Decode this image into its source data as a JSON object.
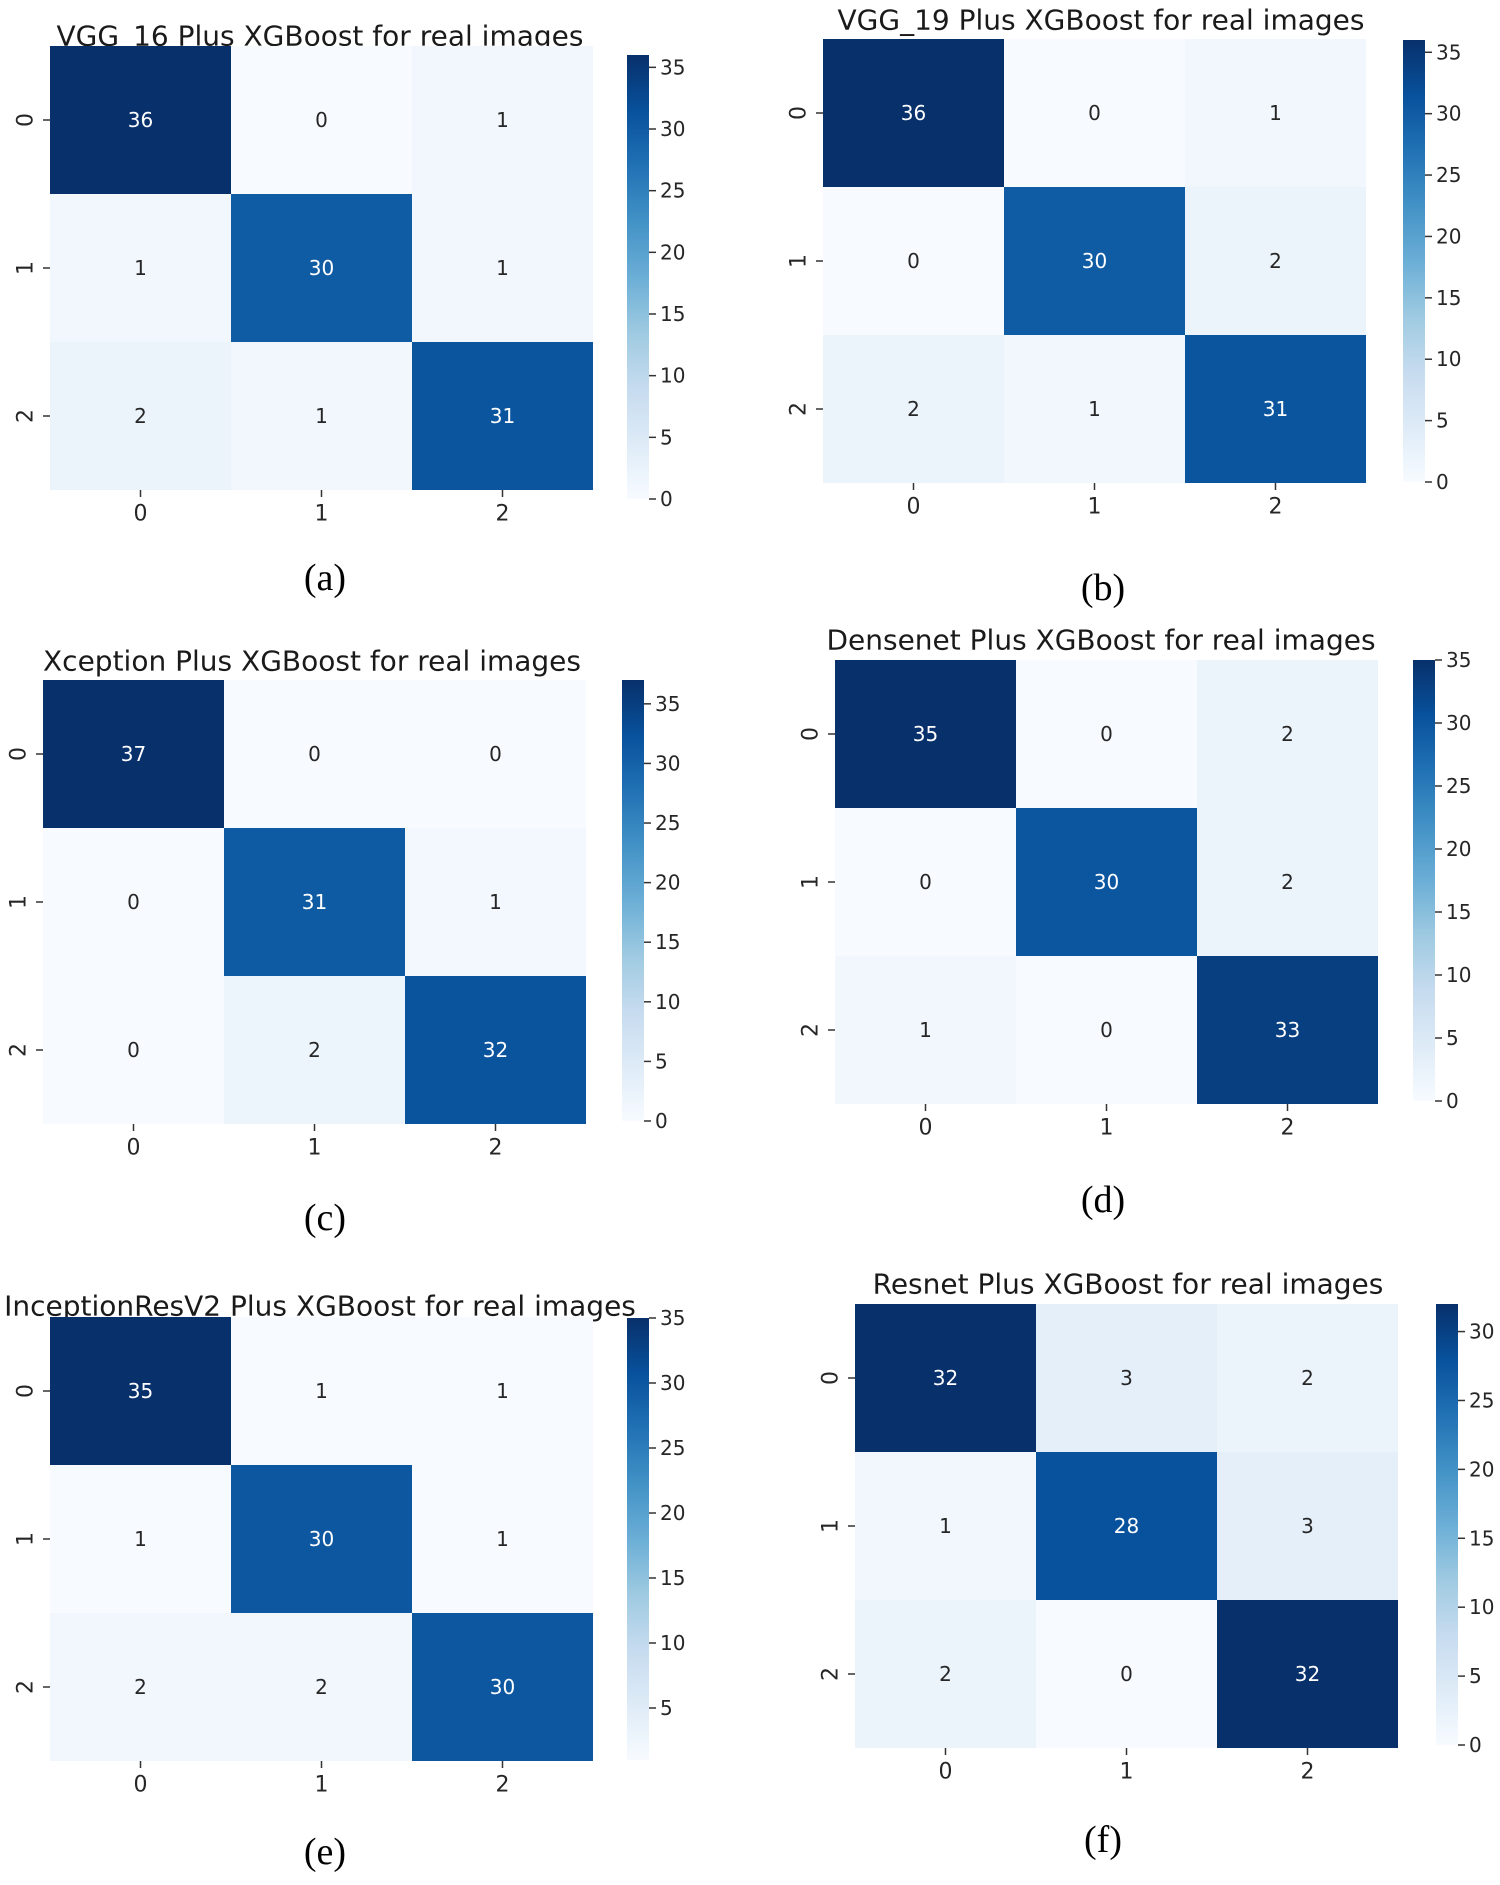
{
  "colorscale": [
    "#f7fbff",
    "#deebf7",
    "#c6dbef",
    "#9ecae1",
    "#6baed6",
    "#4292c6",
    "#2171b5",
    "#08519c",
    "#08306b"
  ],
  "captions": [
    "(a)",
    "(b)",
    "(c)",
    "(d)",
    "(e)",
    "(f)"
  ],
  "chart_data": [
    {
      "type": "heatmap",
      "title": "VGG_16 Plus XGBoost for real images",
      "x_categories": [
        "0",
        "1",
        "2"
      ],
      "y_categories": [
        "0",
        "1",
        "2"
      ],
      "matrix": [
        [
          36,
          0,
          1
        ],
        [
          1,
          30,
          1
        ],
        [
          2,
          1,
          31
        ]
      ],
      "colorbar": {
        "min": 0,
        "max": 36,
        "ticks": [
          0,
          5,
          10,
          15,
          20,
          25,
          30,
          35
        ]
      }
    },
    {
      "type": "heatmap",
      "title": "VGG_19 Plus XGBoost for real images",
      "x_categories": [
        "0",
        "1",
        "2"
      ],
      "y_categories": [
        "0",
        "1",
        "2"
      ],
      "matrix": [
        [
          36,
          0,
          1
        ],
        [
          0,
          30,
          2
        ],
        [
          2,
          1,
          31
        ]
      ],
      "colorbar": {
        "min": 0,
        "max": 36,
        "ticks": [
          0,
          5,
          10,
          15,
          20,
          25,
          30,
          35
        ]
      }
    },
    {
      "type": "heatmap",
      "title": "Xception Plus XGBoost for real images",
      "x_categories": [
        "0",
        "1",
        "2"
      ],
      "y_categories": [
        "0",
        "1",
        "2"
      ],
      "matrix": [
        [
          37,
          0,
          0
        ],
        [
          0,
          31,
          1
        ],
        [
          0,
          2,
          32
        ]
      ],
      "colorbar": {
        "min": 0,
        "max": 37,
        "ticks": [
          0,
          5,
          10,
          15,
          20,
          25,
          30,
          35
        ]
      }
    },
    {
      "type": "heatmap",
      "title": "Densenet Plus XGBoost for real images",
      "x_categories": [
        "0",
        "1",
        "2"
      ],
      "y_categories": [
        "0",
        "1",
        "2"
      ],
      "matrix": [
        [
          35,
          0,
          2
        ],
        [
          0,
          30,
          2
        ],
        [
          1,
          0,
          33
        ]
      ],
      "colorbar": {
        "min": 0,
        "max": 35,
        "ticks": [
          0,
          5,
          10,
          15,
          20,
          25,
          30,
          35
        ]
      }
    },
    {
      "type": "heatmap",
      "title": "InceptionResV2 Plus XGBoost for real images",
      "x_categories": [
        "0",
        "1",
        "2"
      ],
      "y_categories": [
        "0",
        "1",
        "2"
      ],
      "matrix": [
        [
          35,
          1,
          1
        ],
        [
          1,
          30,
          1
        ],
        [
          2,
          2,
          30
        ]
      ],
      "colorbar": {
        "min": 1,
        "max": 35,
        "ticks": [
          5,
          10,
          15,
          20,
          25,
          30,
          35
        ]
      }
    },
    {
      "type": "heatmap",
      "title": "Resnet Plus XGBoost for real images",
      "x_categories": [
        "0",
        "1",
        "2"
      ],
      "y_categories": [
        "0",
        "1",
        "2"
      ],
      "matrix": [
        [
          32,
          3,
          2
        ],
        [
          1,
          28,
          3
        ],
        [
          2,
          0,
          32
        ]
      ],
      "colorbar": {
        "min": 0,
        "max": 32,
        "ticks": [
          0,
          5,
          10,
          15,
          20,
          25,
          30
        ]
      }
    }
  ]
}
